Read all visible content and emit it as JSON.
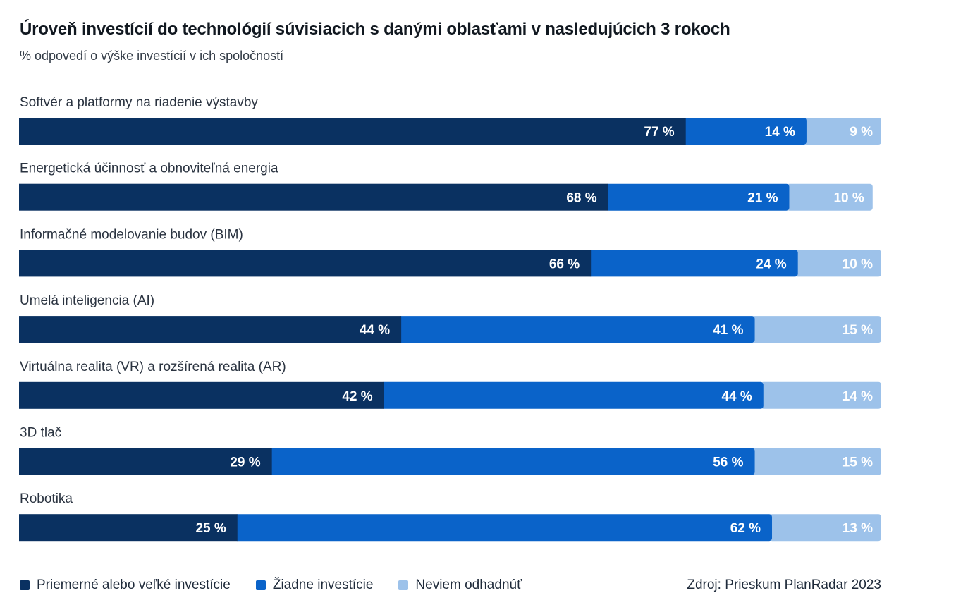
{
  "header": {
    "title": "Úroveň investícií do technológií súvisiacich s danými oblasťami v nasledujúcich 3 rokoch",
    "subtitle": "% odpovedí o výške investícií v ich spoločností"
  },
  "source": "Zdroj: Prieskum PlanRadar 2023",
  "legend": [
    {
      "label": "Priemerné alebo veľké investície",
      "color": "#0a3161"
    },
    {
      "label": "Žiadne investície",
      "color": "#0a63c9"
    },
    {
      "label": "Neviem odhadnúť",
      "color": "#9dc2ea"
    }
  ],
  "chart_data": {
    "type": "bar",
    "orientation": "horizontal",
    "stacked": true,
    "percent_suffix": " %",
    "xlim": [
      0,
      100
    ],
    "grid": false,
    "legend_position": "bottom",
    "categories": [
      "Softvér a platformy na riadenie výstavby",
      "Energetická účinnosť a obnoviteľná energia",
      "Informačné modelovanie budov (BIM)",
      "Umelá inteligencia (AI)",
      "Virtuálna realita (VR) a rozšírená realita (AR)",
      "3D tlač",
      "Robotika"
    ],
    "series": [
      {
        "name": "Priemerné alebo veľké investície",
        "color": "#0a3161",
        "values": [
          77,
          68,
          66,
          44,
          42,
          29,
          25
        ]
      },
      {
        "name": "Žiadne investície",
        "color": "#0a63c9",
        "values": [
          14,
          21,
          24,
          41,
          44,
          56,
          62
        ]
      },
      {
        "name": "Neviem odhadnúť",
        "color": "#9dc2ea",
        "values": [
          9,
          10,
          10,
          15,
          14,
          15,
          13
        ]
      }
    ]
  }
}
